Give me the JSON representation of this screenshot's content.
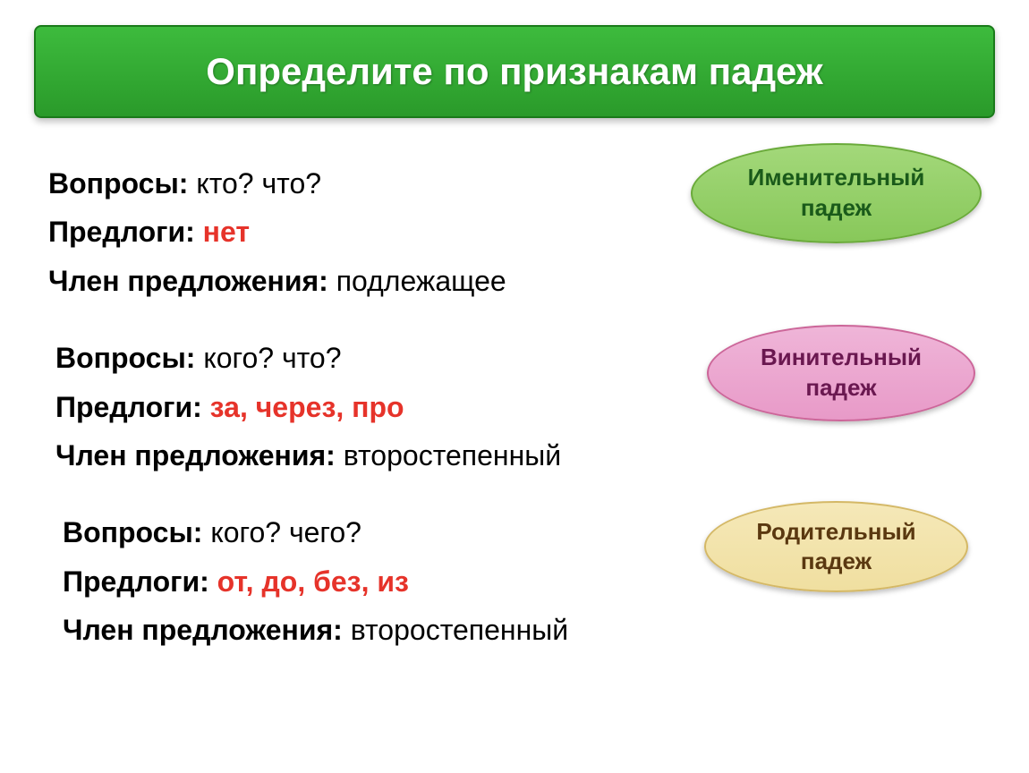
{
  "title": "Определите по признакам падеж",
  "sections": [
    {
      "questions_label": "Вопросы:",
      "questions_value": "кто? что?",
      "prepositions_label": "Предлоги:",
      "prepositions_value": "нет",
      "member_label": "Член предложения:",
      "member_value": "подлежащее",
      "pill_line1": "Именительный",
      "pill_line2": "падеж"
    },
    {
      "questions_label": "Вопросы:",
      "questions_value": "кого? что?",
      "prepositions_label": "Предлоги:",
      "prepositions_value": "за, через, про",
      "member_label": "Член предложения:",
      "member_value": "второстепенный",
      "pill_line1": "Винительный",
      "pill_line2": "падеж"
    },
    {
      "questions_label": "Вопросы:",
      "questions_value": "кого? чего?",
      "prepositions_label": "Предлоги:",
      "prepositions_value": "от, до, без, из",
      "member_label": "Член предложения:",
      "member_value": "второстепенный",
      "pill_line1": "Родительный",
      "pill_line2": "падеж"
    }
  ],
  "colors": {
    "title_bg": "#2a9a2a",
    "title_text": "#ffffff",
    "body_text": "#000000",
    "preposition_text": "#e6332a",
    "pill_green": "#88c85a",
    "pill_pink": "#e89ac8",
    "pill_yellow": "#f0dfa0"
  },
  "fonts": {
    "title_size": 42,
    "body_size": 32,
    "pill_size": 26
  }
}
